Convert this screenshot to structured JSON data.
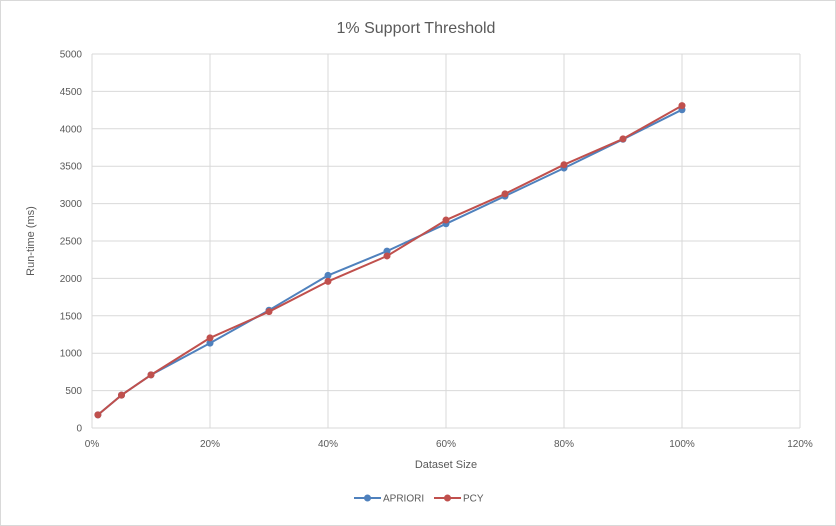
{
  "chart_data": {
    "type": "line",
    "title": "1% Support Threshold",
    "xlabel": "Dataset Size",
    "ylabel": "Run-time (ms)",
    "xlim": [
      0,
      1.2
    ],
    "ylim": [
      0,
      5000
    ],
    "x_ticks": [
      "0%",
      "20%",
      "40%",
      "60%",
      "80%",
      "100%",
      "120%"
    ],
    "y_ticks": [
      "0",
      "500",
      "1000",
      "1500",
      "2000",
      "2500",
      "3000",
      "3500",
      "4000",
      "4500",
      "5000"
    ],
    "grid": true,
    "legend_position": "bottom",
    "x": [
      0.01,
      0.05,
      0.1,
      0.2,
      0.3,
      0.4,
      0.5,
      0.6,
      0.7,
      0.8,
      0.9,
      1.0
    ],
    "series": [
      {
        "name": "APRIORI",
        "color": "#4f81bd",
        "values": [
          175,
          440,
          710,
          1135,
          1575,
          2040,
          2365,
          2730,
          3100,
          3475,
          3860,
          4255
        ]
      },
      {
        "name": "PCY",
        "color": "#c0504d",
        "values": [
          175,
          440,
          710,
          1205,
          1555,
          1960,
          2300,
          2780,
          3130,
          3520,
          3865,
          4310
        ]
      }
    ]
  }
}
